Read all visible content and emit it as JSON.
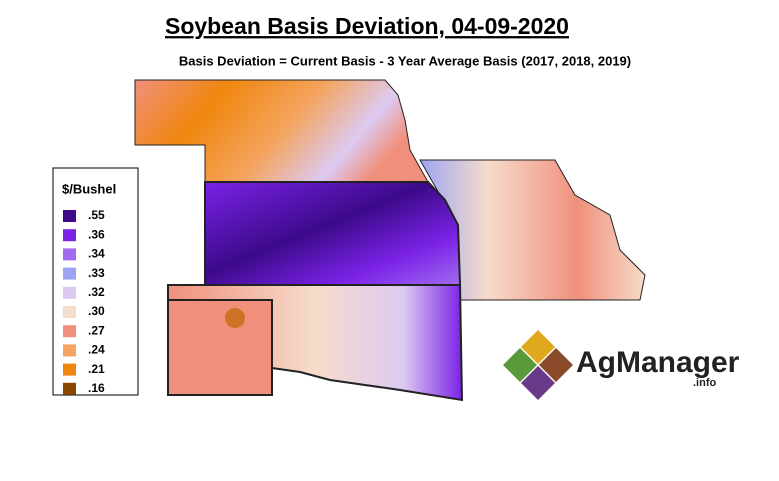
{
  "header": {
    "title": "Soybean Basis Deviation, 04-09-2020",
    "subtitle": "Basis Deviation = Current Basis - 3 Year Average Basis (2017, 2018, 2019)"
  },
  "legend": {
    "title": "$/Bushel",
    "items": [
      {
        "label": ".55",
        "color": "#3c0a8a"
      },
      {
        "label": ".36",
        "color": "#7a22e6"
      },
      {
        "label": ".34",
        "color": "#a26cf0"
      },
      {
        "label": ".33",
        "color": "#9ea4f2"
      },
      {
        "label": ".32",
        "color": "#dccaf2"
      },
      {
        "label": ".30",
        "color": "#f6dccb"
      },
      {
        "label": ".27",
        "color": "#f0907c"
      },
      {
        "label": ".24",
        "color": "#f4a45e"
      },
      {
        "label": ".21",
        "color": "#f0860e"
      },
      {
        "label": ".16",
        "color": "#8a4800"
      }
    ]
  },
  "logo": {
    "name": "AgManager",
    "suffix": ".info"
  }
}
